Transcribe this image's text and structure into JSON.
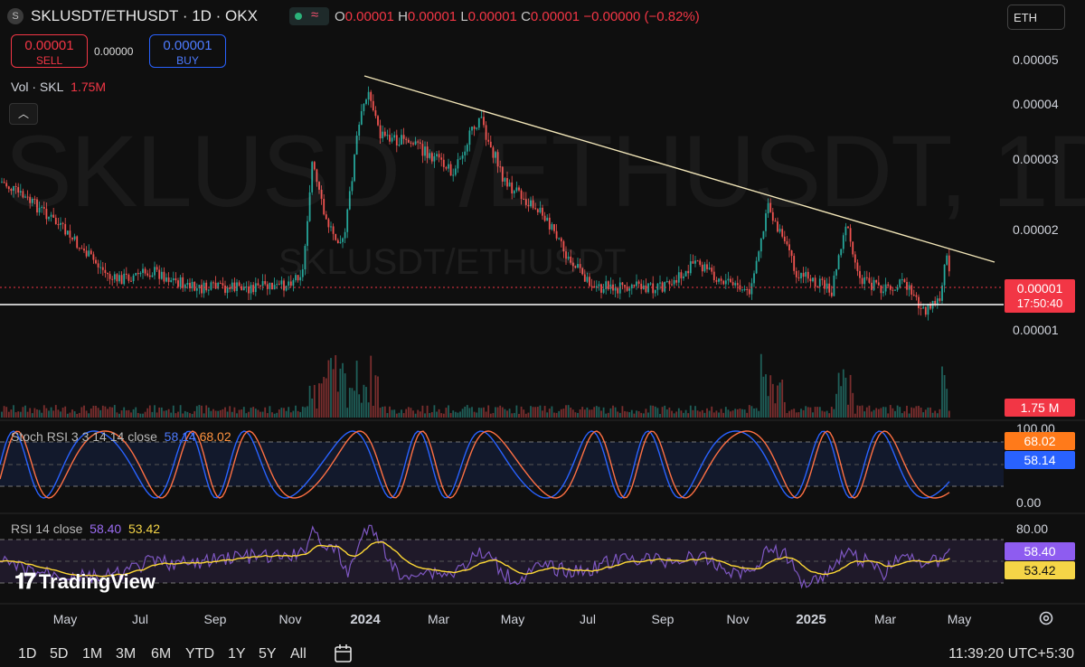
{
  "header": {
    "symbol_badge": "S",
    "title": "SKLUSDT/ETHUSDT · 1D · OKX",
    "ohlc": {
      "o_label": "O",
      "o": "0.00001",
      "h_label": "H",
      "h": "0.00001",
      "l_label": "L",
      "l": "0.00001",
      "c_label": "C",
      "c": "0.00001",
      "change": "−0.00000 (−0.82%)"
    },
    "currency": "ETH",
    "status_icon": "market-open-dot-icon",
    "indicator_icon": "wave-icon"
  },
  "trade": {
    "sell_price": "0.00001",
    "sell_label": "SELL",
    "spread": "0.00000",
    "buy_price": "0.00001",
    "buy_label": "BUY"
  },
  "volume": {
    "label": "Vol · SKL",
    "value": "1.75M",
    "tag": "1.75 M"
  },
  "collapse_icon": "chevron-up-icon",
  "watermark": {
    "big": "SKLUSDT/ETHUSDT, 1D",
    "small": "SKLUSDT/ETHUSDT"
  },
  "price_axis": {
    "labels": [
      "0.00005",
      "0.00004",
      "0.00003",
      "0.00002",
      "0.00001"
    ],
    "last_price_tag": "0.00001",
    "countdown_tag": "17:50:40"
  },
  "stoch_rsi": {
    "label": "Stoch RSI 3 3 14 14 close",
    "k": "58.14",
    "d": "68.02",
    "axis_top": "100.00",
    "axis_bottom": "0.00"
  },
  "rsi": {
    "label": "RSI 14 close",
    "value": "58.40",
    "ma": "53.42",
    "axis_top": "80.00"
  },
  "time_axis": {
    "months": [
      "May",
      "Jul",
      "Sep",
      "Nov",
      "2024",
      "Mar",
      "May",
      "Jul",
      "Sep",
      "Nov",
      "2025",
      "Mar",
      "May"
    ]
  },
  "toolbar": {
    "timeframes": [
      "1D",
      "5D",
      "1M",
      "3M",
      "6M",
      "YTD",
      "1Y",
      "5Y",
      "All"
    ],
    "calendar_icon": "calendar-range-icon",
    "clock": "11:39:20 UTC+5:30",
    "settings_icon": "gear-icon"
  },
  "branding": {
    "logo_text": "TradingView"
  },
  "colors": {
    "up": "#26a69a",
    "down": "#ef5350",
    "trendline": "#f2e6b8",
    "stoch_k": "#2962ff",
    "stoch_d": "#ff7043",
    "rsi": "#7e57c2",
    "rsi_ma": "#fdd835",
    "last_price": "#f23645"
  }
}
